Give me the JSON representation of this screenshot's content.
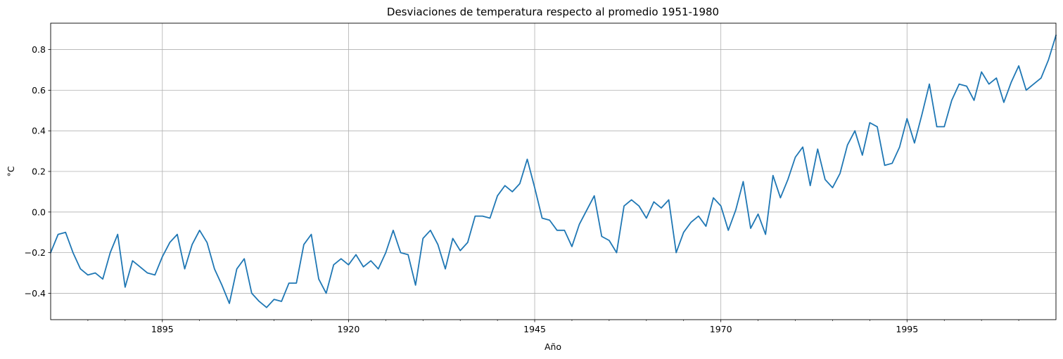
{
  "chart_data": {
    "type": "line",
    "title": "Desviaciones de temperatura respecto al promedio 1951-1980",
    "xlabel": "Año",
    "ylabel": "°C",
    "xlim": [
      1880,
      2015
    ],
    "ylim": [
      -0.53,
      0.93
    ],
    "grid": true,
    "x_major_ticks": [
      1895,
      1920,
      1945,
      1970,
      1995
    ],
    "x_minor_ticks": [
      1885,
      1890,
      1900,
      1905,
      1910,
      1915,
      1925,
      1930,
      1935,
      1940,
      1950,
      1955,
      1960,
      1965,
      1975,
      1980,
      1985,
      1990,
      2000,
      2005,
      2010
    ],
    "y_ticks": [
      -0.4,
      -0.2,
      0.0,
      0.2,
      0.4,
      0.6,
      0.8
    ],
    "y_tick_labels": [
      "−0.4",
      "−0.2",
      "0.0",
      "0.2",
      "0.4",
      "0.6",
      "0.8"
    ],
    "line_color": "#1f77b4",
    "series": [
      {
        "x_start": 1880,
        "values": [
          -0.2,
          -0.11,
          -0.1,
          -0.2,
          -0.28,
          -0.31,
          -0.3,
          -0.33,
          -0.2,
          -0.11,
          -0.37,
          -0.24,
          -0.27,
          -0.3,
          -0.31,
          -0.22,
          -0.15,
          -0.11,
          -0.28,
          -0.16,
          -0.09,
          -0.15,
          -0.28,
          -0.36,
          -0.45,
          -0.28,
          -0.23,
          -0.4,
          -0.44,
          -0.47,
          -0.43,
          -0.44,
          -0.35,
          -0.35,
          -0.16,
          -0.11,
          -0.33,
          -0.4,
          -0.26,
          -0.23,
          -0.26,
          -0.21,
          -0.27,
          -0.24,
          -0.28,
          -0.2,
          -0.09,
          -0.2,
          -0.21,
          -0.36,
          -0.13,
          -0.09,
          -0.16,
          -0.28,
          -0.13,
          -0.19,
          -0.15,
          -0.02,
          -0.02,
          -0.03,
          0.08,
          0.13,
          0.1,
          0.14,
          0.26,
          0.12,
          -0.03,
          -0.04,
          -0.09,
          -0.09,
          -0.17,
          -0.06,
          0.01,
          0.08,
          -0.12,
          -0.14,
          -0.2,
          0.03,
          0.06,
          0.03,
          -0.03,
          0.05,
          0.02,
          0.06,
          -0.2,
          -0.1,
          -0.05,
          -0.02,
          -0.07,
          0.07,
          0.03,
          -0.09,
          0.01,
          0.15,
          -0.08,
          -0.01,
          -0.11,
          0.18,
          0.07,
          0.16,
          0.27,
          0.32,
          0.13,
          0.31,
          0.16,
          0.12,
          0.19,
          0.33,
          0.4,
          0.28,
          0.44,
          0.42,
          0.23,
          0.24,
          0.32,
          0.46,
          0.34,
          0.48,
          0.63,
          0.42,
          0.42,
          0.55,
          0.63,
          0.62,
          0.55,
          0.69,
          0.63,
          0.66,
          0.54,
          0.64,
          0.72,
          0.6,
          0.63,
          0.66,
          0.75,
          0.87
        ]
      }
    ]
  }
}
